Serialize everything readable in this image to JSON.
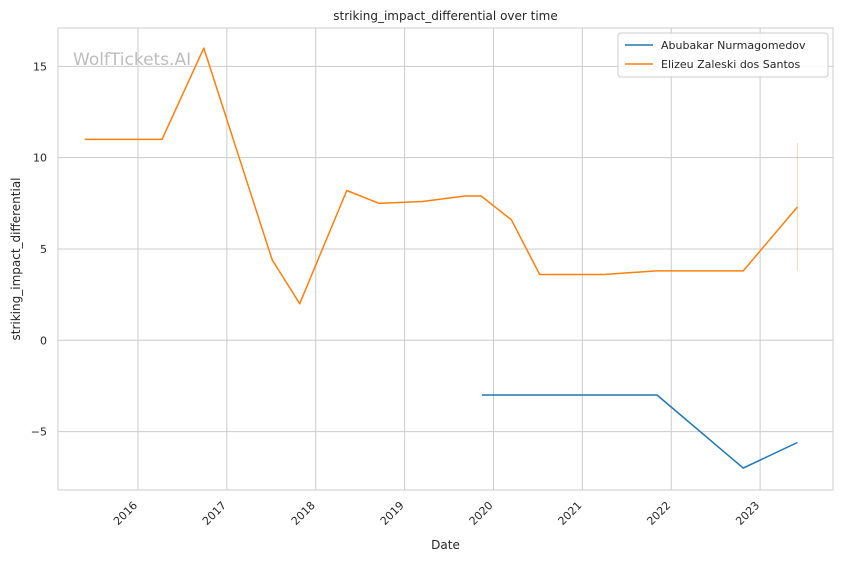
{
  "chart_data": {
    "type": "line",
    "title": "striking_impact_differential over time",
    "xlabel": "Date",
    "ylabel": "striking_impact_differential",
    "watermark": "WolfTickets.AI",
    "x_ticks": [
      "2016",
      "2017",
      "2018",
      "2019",
      "2020",
      "2021",
      "2022",
      "2023"
    ],
    "y_ticks": [
      "−5",
      "0",
      "5",
      "10",
      "15"
    ],
    "x_tick_values": [
      2016,
      2017,
      2018,
      2019,
      2020,
      2021,
      2022,
      2023
    ],
    "y_tick_values": [
      -5,
      0,
      5,
      10,
      15
    ],
    "xlim": [
      2015.1,
      2023.82
    ],
    "ylim": [
      -8.2,
      17.1
    ],
    "grid": true,
    "legend_position": "top-right",
    "series": [
      {
        "name": "Abubakar Nurmagomedov",
        "color": "#1f77b4",
        "x": [
          2019.87,
          2021.84,
          2022.81,
          2023.42
        ],
        "y": [
          -3.0,
          -3.0,
          -7.0,
          -5.6
        ]
      },
      {
        "name": "Elizeu Zaleski dos Santos",
        "color": "#ff7f0e",
        "x": [
          2015.4,
          2016.27,
          2016.74,
          2017.51,
          2017.82,
          2018.35,
          2018.71,
          2019.2,
          2019.68,
          2019.86,
          2020.2,
          2020.52,
          2021.24,
          2021.83,
          2022.81,
          2023.42
        ],
        "y": [
          11.0,
          11.0,
          16.0,
          4.4,
          2.0,
          8.2,
          7.5,
          7.6,
          7.9,
          7.9,
          6.6,
          3.6,
          3.6,
          3.8,
          3.8,
          7.3
        ]
      }
    ],
    "error_bars": [
      {
        "series": "Elizeu Zaleski dos Santos",
        "x": 2023.42,
        "low": 3.8,
        "high": 10.8,
        "color": "#ff7f0e"
      }
    ]
  }
}
